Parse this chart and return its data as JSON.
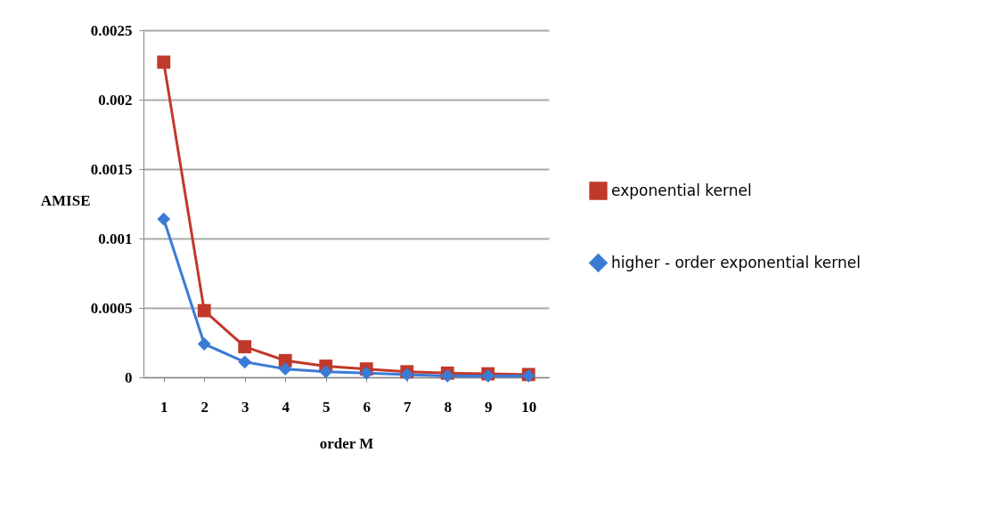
{
  "chart_data": {
    "type": "line",
    "xlabel": "order M",
    "ylabel": "AMISE",
    "categories": [
      "1",
      "2",
      "3",
      "4",
      "5",
      "6",
      "7",
      "8",
      "9",
      "10"
    ],
    "series": [
      {
        "name": "exponential kernel",
        "color": "#c0392b",
        "marker": "square",
        "values": [
          0.00227,
          0.00048,
          0.00022,
          0.00012,
          8e-05,
          6e-05,
          4e-05,
          3e-05,
          2.5e-05,
          2e-05
        ]
      },
      {
        "name": "higher - order exponential kernel",
        "color": "#3a7bd5",
        "marker": "diamond",
        "values": [
          0.00114,
          0.00024,
          0.00011,
          6e-05,
          4e-05,
          3e-05,
          2e-05,
          1e-05,
          1e-05,
          1e-05
        ]
      }
    ],
    "ylim": [
      0,
      0.0025
    ],
    "yticks": [
      0,
      0.0005,
      0.001,
      0.0015,
      0.002,
      0.0025
    ],
    "grid": "y",
    "legend": "right"
  }
}
